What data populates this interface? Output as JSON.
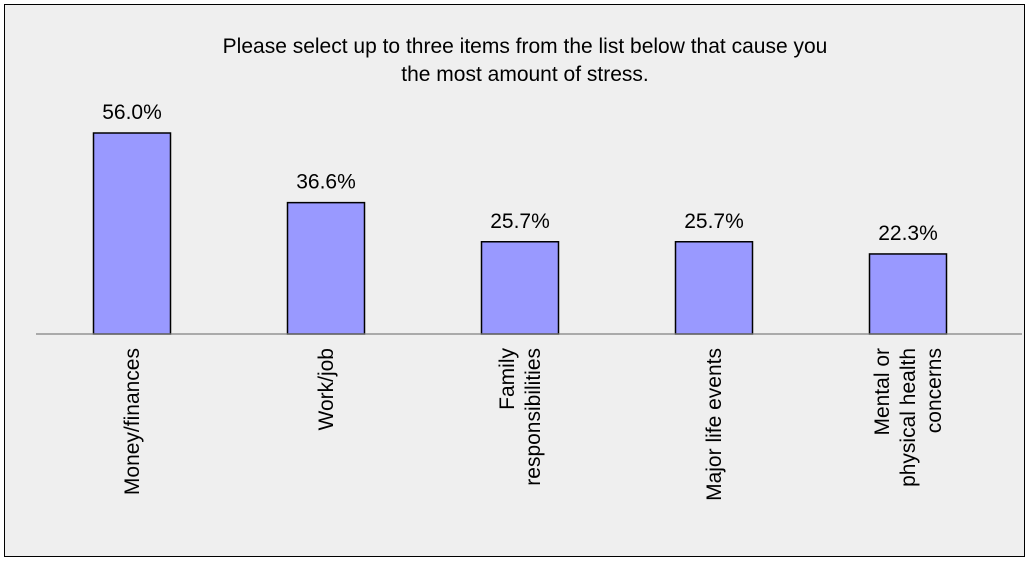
{
  "chart_data": {
    "type": "bar",
    "title_lines": [
      "Please select up to three items from the list below that cause you",
      "the most amount of stress."
    ],
    "categories": [
      "Money/finances",
      "Work/job",
      "Family responsibilities",
      "Major life events",
      "Mental or physical health concerns"
    ],
    "category_lines": [
      [
        "Money/finances"
      ],
      [
        "Work/job"
      ],
      [
        "Family",
        "responsibilities"
      ],
      [
        "Major life events"
      ],
      [
        "Mental or",
        "physical health",
        "concerns"
      ]
    ],
    "values": [
      56.0,
      36.6,
      25.7,
      25.7,
      22.3
    ],
    "value_labels": [
      "56.0%",
      "36.6%",
      "25.7%",
      "25.7%",
      "22.3%"
    ],
    "ylim": [
      0,
      60
    ],
    "grid": false,
    "legend": "none",
    "colors": {
      "bar_fill": "#9999ff",
      "bar_stroke": "#000000",
      "background": "#efefef",
      "axis": "#808080"
    }
  }
}
